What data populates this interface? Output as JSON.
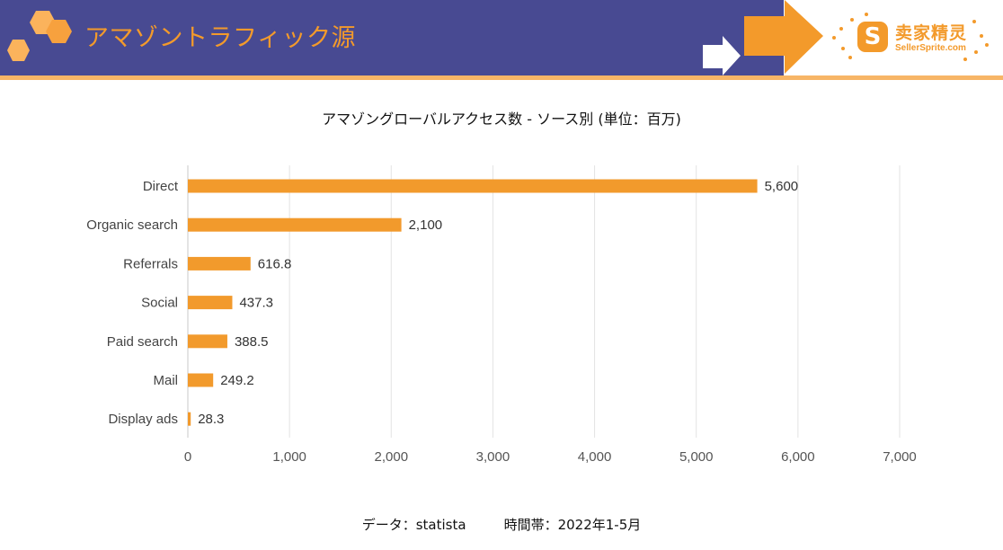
{
  "header": {
    "title": "アマゾントラフィック源",
    "logo": {
      "text_cn": "卖家精灵",
      "text_en": "SellerSprite.com",
      "mark": "S"
    }
  },
  "colors": {
    "header_band": "#484a92",
    "accent_orange": "#f39a2b",
    "bar": "#f29a2c",
    "rule": "#f7b566",
    "grid": "#e3e3e3"
  },
  "chart_data": {
    "type": "bar",
    "orientation": "horizontal",
    "title": "アマゾングローバルアクセス数 - ソース別 (単位：百万)",
    "xlabel": "",
    "ylabel": "",
    "categories": [
      "Direct",
      "Organic search",
      "Referrals",
      "Social",
      "Paid search",
      "Mail",
      "Display ads"
    ],
    "values": [
      5600,
      2100,
      616.8,
      437.3,
      388.5,
      249.2,
      28.3
    ],
    "data_labels": [
      "5,600",
      "2,100",
      "616.8",
      "437.3",
      "388.5",
      "249.2",
      "28.3"
    ],
    "xlim": [
      0,
      7000
    ],
    "xticks": [
      0,
      1000,
      2000,
      3000,
      4000,
      5000,
      6000,
      7000
    ],
    "xtick_labels": [
      "0",
      "1,000",
      "2,000",
      "3,000",
      "4,000",
      "5,000",
      "6,000",
      "7,000"
    ],
    "grid": "vertical",
    "legend": "none"
  },
  "footer": {
    "source": "データ：statista",
    "period": "時間帯：2022年1-5月"
  }
}
